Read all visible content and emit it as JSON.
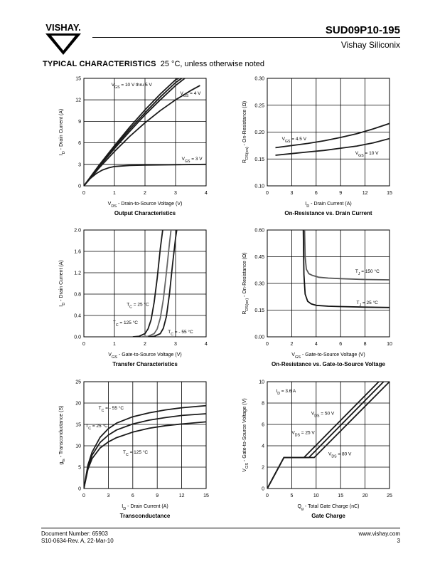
{
  "header": {
    "brand": "VISHAY.",
    "part_number": "SUD09P10-195",
    "company": "Vishay Siliconix"
  },
  "section": {
    "title": "TYPICAL CHARACTERISTICS",
    "condition": "25 °C, unless otherwise noted"
  },
  "footer": {
    "doc_number": "Document Number: 65903",
    "revision": "S10-0634-Rev. A, 22-Mar-10",
    "website": "www.vishay.com",
    "page": "3"
  },
  "chart_data": [
    {
      "id": "output",
      "type": "line",
      "title": "Output Characteristics",
      "xlabel": "V_DS - Drain-to-Source Voltage (V)",
      "ylabel": "I_D - Drain Current (A)",
      "xlim": [
        0,
        4
      ],
      "ylim": [
        0,
        15
      ],
      "xticks": [
        0,
        1,
        2,
        3,
        4
      ],
      "yticks": [
        0,
        3,
        6,
        9,
        12,
        15
      ],
      "grid": true,
      "series": [
        {
          "name": "V_GS = 10 V thru 5 V",
          "x": [
            0,
            0.5,
            1,
            1.5,
            2,
            2.5,
            3,
            3.1
          ],
          "y": [
            0,
            2.9,
            5.6,
            8.2,
            10.6,
            12.8,
            14.8,
            15
          ]
        },
        {
          "x": [
            0,
            0.5,
            1,
            1.5,
            2,
            2.5,
            3,
            3.2
          ],
          "y": [
            0,
            2.8,
            5.4,
            7.9,
            10.2,
            12.4,
            14.4,
            15
          ]
        },
        {
          "x": [
            0,
            0.5,
            1,
            1.5,
            2,
            2.5,
            3,
            3.3
          ],
          "y": [
            0,
            2.7,
            5.2,
            7.6,
            9.9,
            12.0,
            14.0,
            15
          ]
        },
        {
          "name": "V_GS = 4 V",
          "x": [
            0,
            0.5,
            1,
            1.5,
            2,
            2.5,
            3,
            3.5,
            3.8
          ],
          "y": [
            0,
            2.5,
            4.8,
            6.9,
            8.8,
            10.5,
            12.0,
            13.3,
            14.0
          ]
        },
        {
          "name": "V_GS = 3 V",
          "x": [
            0,
            0.2,
            0.4,
            0.6,
            0.8,
            1,
            1.5,
            2,
            3,
            4
          ],
          "y": [
            0,
            1.0,
            1.7,
            2.2,
            2.5,
            2.7,
            2.85,
            2.9,
            2.95,
            3.0
          ]
        }
      ],
      "annotations": [
        {
          "text": "V_GS = 10 V thru 5 V",
          "x": 0.9,
          "y": 13.9
        },
        {
          "text": "V_GS = 4 V",
          "x": 3.15,
          "y": 12.7
        },
        {
          "text": "V_GS = 3 V",
          "x": 3.2,
          "y": 3.6
        }
      ]
    },
    {
      "id": "onres_id",
      "type": "line",
      "title": "On-Resistance vs. Drain Current",
      "xlabel": "I_D - Drain Current (A)",
      "ylabel": "R_DS(on) - On-Resistance (Ω)",
      "xlim": [
        0,
        15
      ],
      "ylim": [
        0.1,
        0.3
      ],
      "xticks": [
        0,
        3,
        6,
        9,
        12,
        15
      ],
      "yticks": [
        0.1,
        0.15,
        0.2,
        0.25,
        0.3
      ],
      "grid": true,
      "series": [
        {
          "name": "V_GS = 4.5 V",
          "x": [
            1,
            3,
            5,
            7,
            9,
            11,
            13,
            15
          ],
          "y": [
            0.171,
            0.175,
            0.179,
            0.184,
            0.19,
            0.197,
            0.206,
            0.216
          ]
        },
        {
          "name": "V_GS = 10 V",
          "x": [
            1,
            3,
            5,
            7,
            9,
            11,
            13,
            15
          ],
          "y": [
            0.157,
            0.16,
            0.163,
            0.166,
            0.17,
            0.174,
            0.18,
            0.188
          ]
        }
      ],
      "annotations": [
        {
          "text": "V_GS = 4.5 V",
          "x": 1.8,
          "y": 0.185
        },
        {
          "text": "V_GS = 10 V",
          "x": 10.8,
          "y": 0.158
        }
      ]
    },
    {
      "id": "transfer",
      "type": "line",
      "title": "Transfer Characteristics",
      "xlabel": "V_GS - Gate-to-Source Voltage (V)",
      "ylabel": "I_D - Drain Current (A)",
      "xlim": [
        0,
        4
      ],
      "ylim": [
        0,
        2.0
      ],
      "xticks": [
        0,
        1,
        2,
        3,
        4
      ],
      "yticks": [
        0.0,
        0.4,
        0.8,
        1.2,
        1.6,
        2.0
      ],
      "grid": true,
      "series": [
        {
          "name": "T_C = 125 °C",
          "x": [
            1.6,
            1.8,
            2.0,
            2.1,
            2.2,
            2.3,
            2.4,
            2.5,
            2.58
          ],
          "y": [
            0,
            0.01,
            0.06,
            0.15,
            0.32,
            0.65,
            1.1,
            1.65,
            2.0
          ]
        },
        {
          "name": "T_C = 25 °C",
          "x": [
            1.9,
            2.1,
            2.3,
            2.4,
            2.5,
            2.6,
            2.7,
            2.8,
            2.85
          ],
          "y": [
            0,
            0.01,
            0.06,
            0.15,
            0.35,
            0.7,
            1.2,
            1.75,
            2.0
          ]
        },
        {
          "name": "T_C = - 55 °C",
          "x": [
            2.1,
            2.3,
            2.5,
            2.6,
            2.7,
            2.8,
            2.9,
            3.0,
            3.04
          ],
          "y": [
            0,
            0.01,
            0.06,
            0.16,
            0.38,
            0.8,
            1.35,
            1.85,
            2.0
          ]
        }
      ],
      "annotations": [
        {
          "text": "T_C = 25 °C",
          "x": 1.4,
          "y": 0.58
        },
        {
          "text": "T_C = 125 °C",
          "x": 0.95,
          "y": 0.24
        },
        {
          "text": "T_C = - 55 °C",
          "x": 2.75,
          "y": 0.07
        }
      ]
    },
    {
      "id": "onres_vgs",
      "type": "line",
      "title": "On-Resistance vs. Gate-to-Source Voltage",
      "xlabel": "V_GS - Gate-to-Source Voltage (V)",
      "ylabel": "R_DS(on) - On-Resistance (Ω)",
      "xlim": [
        0,
        10
      ],
      "ylim": [
        0.0,
        0.6
      ],
      "xticks": [
        0,
        2,
        4,
        6,
        8,
        10
      ],
      "yticks": [
        0.0,
        0.15,
        0.3,
        0.45,
        0.6
      ],
      "grid": true,
      "series": [
        {
          "name": "T_J = 150 °C",
          "x": [
            3.05,
            3.1,
            3.2,
            3.4,
            3.7,
            4.2,
            5,
            6,
            8,
            10
          ],
          "y": [
            0.6,
            0.45,
            0.38,
            0.355,
            0.345,
            0.335,
            0.33,
            0.327,
            0.322,
            0.32
          ]
        },
        {
          "name": "T_J = 25 °C",
          "x": [
            2.95,
            3.0,
            3.1,
            3.3,
            3.6,
            4,
            5,
            6,
            8,
            10
          ],
          "y": [
            0.6,
            0.35,
            0.24,
            0.2,
            0.185,
            0.177,
            0.172,
            0.17,
            0.167,
            0.165
          ]
        }
      ],
      "annotations": [
        {
          "text": "T_J = 150 °C",
          "x": 7.2,
          "y": 0.36
        },
        {
          "text": "T_J = 25 °C",
          "x": 7.3,
          "y": 0.185
        }
      ]
    },
    {
      "id": "transconductance",
      "type": "line",
      "title": "Transconductance",
      "xlabel": "I_D - Drain Current (A)",
      "ylabel": "g_fs - Transconductance (S)",
      "xlim": [
        0,
        15
      ],
      "ylim": [
        0,
        25
      ],
      "xticks": [
        0,
        3,
        6,
        9,
        12,
        15
      ],
      "yticks": [
        0,
        5,
        10,
        15,
        20,
        25
      ],
      "grid": true,
      "series": [
        {
          "name": "T_C = - 55 °C",
          "x": [
            0,
            0.5,
            1,
            2,
            3,
            4,
            6,
            8,
            10,
            12,
            15
          ],
          "y": [
            0,
            5.5,
            8.5,
            12,
            14,
            15.3,
            16.8,
            17.7,
            18.4,
            18.9,
            19.4
          ]
        },
        {
          "name": "T_C = 25 °C",
          "x": [
            0,
            0.5,
            1,
            2,
            3,
            4,
            6,
            8,
            10,
            12,
            15
          ],
          "y": [
            0,
            5,
            7.8,
            10.8,
            12.5,
            13.7,
            15.1,
            16.0,
            16.6,
            17.1,
            17.5
          ]
        },
        {
          "name": "T_C = 125 °C",
          "x": [
            0,
            0.5,
            1,
            2,
            3,
            4,
            6,
            8,
            10,
            12,
            15
          ],
          "y": [
            0,
            4.5,
            7,
            9.5,
            10.9,
            11.9,
            13.2,
            14.1,
            14.7,
            15.1,
            15.6
          ]
        }
      ],
      "annotations": [
        {
          "text": "T_C = - 55 °C",
          "x": 1.8,
          "y": 18.5
        },
        {
          "text": "T_C = 25 °C",
          "x": 0.2,
          "y": 14.3
        },
        {
          "text": "T_C = 125 °C",
          "x": 4.8,
          "y": 8.2
        }
      ]
    },
    {
      "id": "gate_charge",
      "type": "line",
      "title": "Gate Charge",
      "xlabel": "Q_g - Total Gate Charge (nC)",
      "ylabel": "V_GS - Gate-to-Source Voltage (V)",
      "xlim": [
        0,
        25
      ],
      "ylim": [
        0,
        10
      ],
      "xticks": [
        0,
        5,
        10,
        15,
        20,
        25
      ],
      "yticks": [
        0,
        2,
        4,
        6,
        8,
        10
      ],
      "grid": true,
      "series": [
        {
          "name": "V_DS = 25 V",
          "x": [
            0,
            3.4,
            7.5,
            22.8
          ],
          "y": [
            0,
            2.9,
            2.9,
            10
          ]
        },
        {
          "name": "V_DS = 50 V",
          "x": [
            0,
            3.4,
            8.5,
            23.8
          ],
          "y": [
            0,
            2.9,
            2.9,
            10
          ]
        },
        {
          "name": "V_DS = 80 V",
          "x": [
            0,
            3.4,
            9.6,
            25
          ],
          "y": [
            0,
            2.9,
            2.9,
            10
          ]
        }
      ],
      "annotations": [
        {
          "text": "I_D = 3.6 A",
          "x": 1.8,
          "y": 9.0
        },
        {
          "text": "V_DS = 50 V",
          "x": 9.0,
          "y": 6.9
        },
        {
          "text": "V_DS = 25 V",
          "x": 5.0,
          "y": 5.1
        },
        {
          "text": "V_DS = 80 V",
          "x": 12.5,
          "y": 3.1
        }
      ]
    }
  ]
}
